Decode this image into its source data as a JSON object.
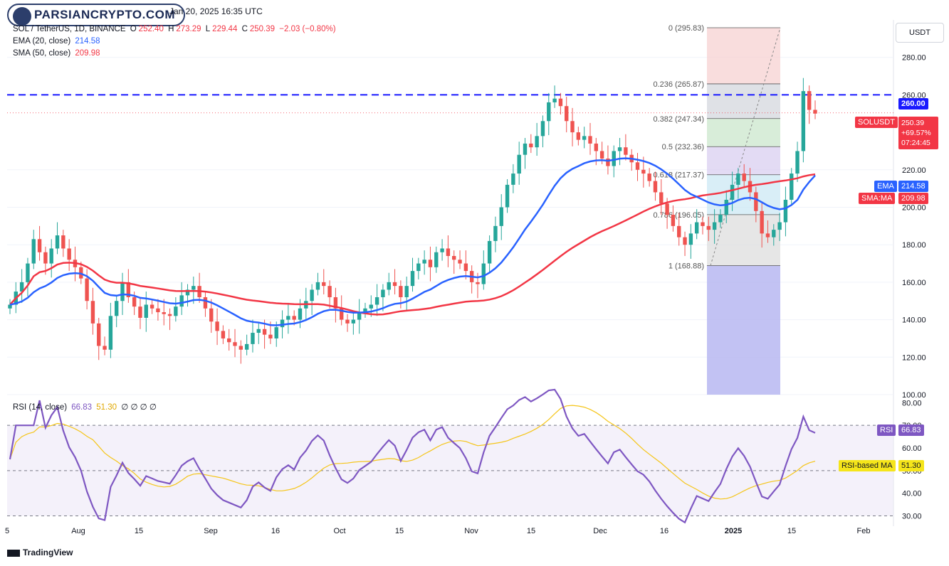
{
  "watermark": "PARSIANCRYPTO.COM",
  "header": {
    "datetime": "Jan 20, 2025 16:35 UTC"
  },
  "legend": {
    "symbol": "SOL / TetherUS, 1D, BINANCE",
    "o_label": "O",
    "o": "252.40",
    "h_label": "H",
    "h": "273.29",
    "l_label": "L",
    "l": "229.44",
    "c_label": "C",
    "c": "250.39",
    "change": "−2.03 (−0.80%)",
    "ema_label": "EMA (20, close)",
    "ema_value": "214.58",
    "sma_label": "SMA (50, close)",
    "sma_value": "209.98",
    "rsi_label": "RSI (14, close)",
    "rsi_value": "66.83",
    "rsi_ma_value": "51.30",
    "rsi_extra": "∅ ∅ ∅ ∅"
  },
  "currency_button": "USDT",
  "tags": {
    "level_260": "260.00",
    "price_symbol": "SOLUSDT",
    "price_value": "250.39",
    "price_change": "+69.57%",
    "countdown": "07:24:45",
    "ema_name": "EMA",
    "ema_value": "214.58",
    "sma_name": "SMA:MA",
    "sma_value": "209.98",
    "rsi_name": "RSI",
    "rsi_value": "66.83",
    "rsi_ma_name": "RSI-based MA",
    "rsi_ma_value": "51.30"
  },
  "brand": "TradingView",
  "colors": {
    "up": "#26a69a",
    "down": "#ef5350",
    "ema": "#2962ff",
    "sma": "#f23645",
    "rsi": "#7e57c2",
    "rsi_ma": "#f5c518",
    "level": "#1a1aff"
  },
  "chart_data": {
    "type": "candlestick",
    "price_axis": {
      "ticks": [
        "280.00",
        "260.00",
        "220.00",
        "200.00",
        "180.00",
        "160.00",
        "140.00",
        "120.00",
        "100.00"
      ],
      "ylim": [
        100,
        300
      ]
    },
    "rsi_axis": {
      "ticks": [
        "80.00",
        "70.00",
        "60.00",
        "50.00",
        "40.00",
        "30.00"
      ],
      "ylim": [
        27,
        82
      ],
      "bands": [
        30,
        50,
        70
      ]
    },
    "x_labels": [
      "5",
      "Aug",
      "15",
      "Sep",
      "16",
      "Oct",
      "15",
      "Nov",
      "15",
      "Dec",
      "16",
      "2025",
      "15",
      "Feb"
    ],
    "horizontal_level": 260,
    "fib": {
      "levels": [
        {
          "label": "0 (295.83)",
          "value": 295.83
        },
        {
          "label": "0.236 (265.87)",
          "value": 265.87
        },
        {
          "label": "0.382 (247.34)",
          "value": 247.34
        },
        {
          "label": "0.5 (232.36)",
          "value": 232.36
        },
        {
          "label": "0.618 (217.37)",
          "value": 217.37
        },
        {
          "label": "0.786 (196.05)",
          "value": 196.05
        },
        {
          "label": "1 (168.88)",
          "value": 168.88
        }
      ]
    },
    "closes": [
      148,
      155,
      160,
      170,
      183,
      176,
      170,
      178,
      185,
      178,
      172,
      168,
      162,
      150,
      138,
      126,
      124,
      142,
      150,
      160,
      152,
      147,
      141,
      148,
      146,
      144,
      143,
      142,
      147,
      153,
      156,
      158,
      152,
      146,
      139,
      134,
      130,
      128,
      126,
      124,
      127,
      133,
      135,
      132,
      130,
      136,
      140,
      142,
      140,
      146,
      150,
      156,
      160,
      158,
      152,
      146,
      140,
      138,
      140,
      144,
      146,
      148,
      152,
      156,
      160,
      158,
      152,
      158,
      166,
      170,
      172,
      168,
      176,
      178,
      174,
      172,
      170,
      166,
      160,
      159,
      170,
      182,
      190,
      200,
      212,
      218,
      228,
      234,
      232,
      238,
      246,
      256,
      258,
      254,
      246,
      240,
      236,
      238,
      234,
      230,
      226,
      222,
      230,
      232,
      228,
      224,
      220,
      218,
      214,
      208,
      202,
      196,
      190,
      184,
      180,
      186,
      192,
      190,
      188,
      192,
      196,
      204,
      212,
      218,
      214,
      208,
      198,
      186,
      184,
      188,
      192,
      204,
      218,
      230,
      262,
      252,
      250
    ]
  }
}
